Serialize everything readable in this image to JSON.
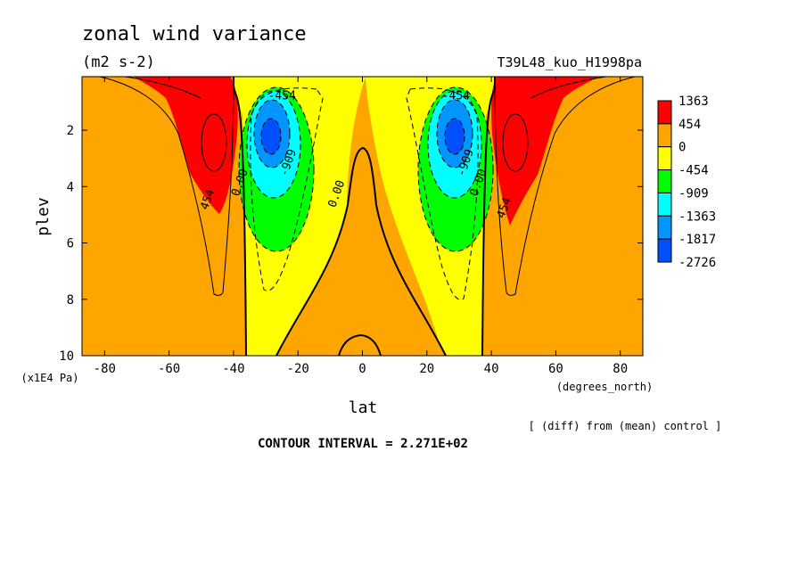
{
  "title": "zonal wind variance",
  "units": "(m2 s-2)",
  "experiment": "T39L48_kuo_H1998pa",
  "note": "[ (diff) from (mean) control ]",
  "contour_interval": "CONTOUR INTERVAL = 2.271E+02",
  "colors": {
    "lvl_pos2": "#ff0000",
    "lvl_pos1": "#ffa500",
    "lvl_zero": "#ffff00",
    "lvl_neg1": "#00ff00",
    "lvl_neg2": "#00ffff",
    "lvl_neg3": "#0096ff",
    "lvl_neg4": "#0050ff",
    "lvl_neg5": "#0000c8"
  },
  "chart_data": {
    "type": "heatmap",
    "subtype": "filled contour",
    "xlabel": "lat",
    "x_unit": "(degrees_north)",
    "ylabel": "plev",
    "y_unit": "(x1E4 Pa)",
    "xlim": [
      -87,
      87
    ],
    "ylim": [
      10,
      0.1
    ],
    "x_ticks": [
      "-80",
      "-60",
      "-40",
      "-20",
      "0",
      "20",
      "40",
      "60",
      "80"
    ],
    "y_ticks": [
      "2",
      "4",
      "6",
      "8",
      "10"
    ],
    "legend_levels": [
      "1363",
      "454",
      "0",
      "-454",
      "-909",
      "-1363",
      "-1817",
      "-2726"
    ],
    "contour_labels": [
      {
        "text": "454",
        "lat": -47,
        "plev": 4.5
      },
      {
        "text": "-454",
        "lat": -25,
        "plev": 0.9
      },
      {
        "text": "-909",
        "lat": -22,
        "plev": 3.2
      },
      {
        "text": "0.00",
        "lat": -37,
        "plev": 3.9
      },
      {
        "text": "0.00",
        "lat": -7,
        "plev": 4.3
      },
      {
        "text": "-454",
        "lat": 29,
        "plev": 0.9
      },
      {
        "text": "-909",
        "lat": 33,
        "plev": 3.2
      },
      {
        "text": "0.00",
        "lat": 37,
        "plev": 3.9
      },
      {
        "text": "454",
        "lat": 45,
        "plev": 4.8
      }
    ],
    "features": [
      {
        "name": "southern positive maximum",
        "lat": -47,
        "plev": 2.4,
        "value": 1363
      },
      {
        "name": "southern negative minimum",
        "lat": -28,
        "plev": 2.2,
        "value": -2726
      },
      {
        "name": "northern negative minimum",
        "lat": 29,
        "plev": 2.2,
        "value": -2726
      },
      {
        "name": "northern positive maximum",
        "lat": 45,
        "plev": 2.4,
        "value": 1363
      }
    ]
  }
}
